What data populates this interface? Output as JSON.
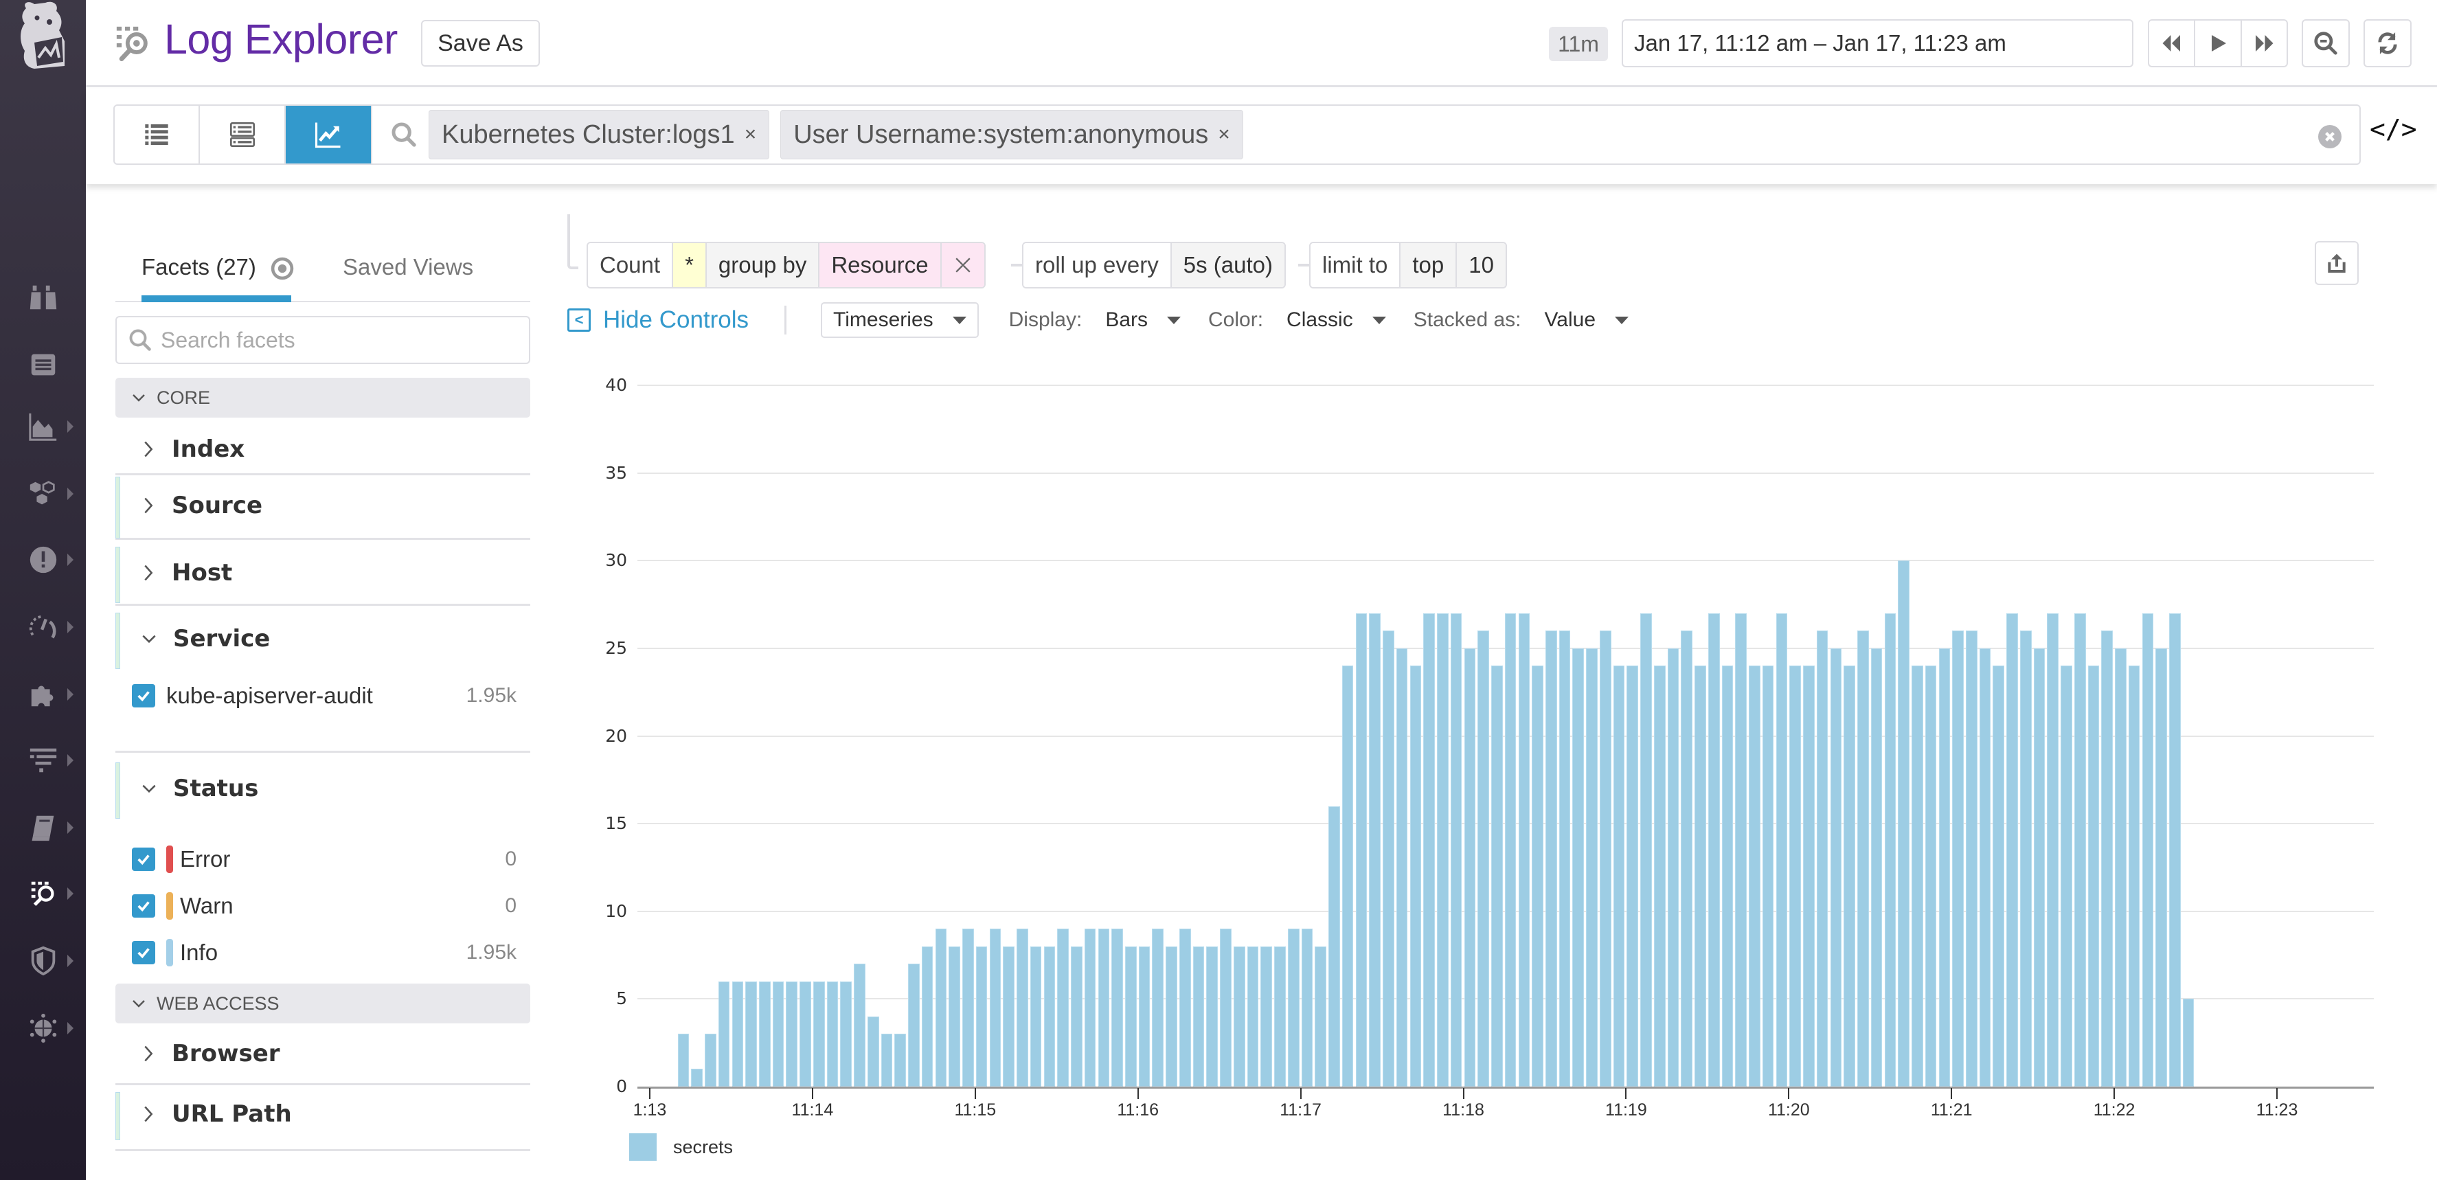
{
  "header": {
    "title": "Log Explorer",
    "save_as": "Save As",
    "span": "11m",
    "time_range": "Jan 17, 11:12 am – Jan 17, 11:23 am",
    "buttons": [
      "rewind-icon",
      "play-icon",
      "fast-forward-icon",
      "zoom-out-icon",
      "refresh-icon"
    ]
  },
  "nav": {
    "items": [
      "binoculars-icon",
      "list-icon",
      "dashboard-chart-icon",
      "infrastructure-icon",
      "monitors-alert-icon",
      "apm-gauge-icon",
      "integrations-puzzle-icon",
      "pipelines-filter-icon",
      "notebook-icon",
      "logs-icon",
      "security-shield-icon",
      "network-globe-icon"
    ]
  },
  "search": {
    "view_buttons": [
      "list-view",
      "patterns-view",
      "analytics-view"
    ],
    "active_view": "analytics-view",
    "pills": [
      {
        "label": "Kubernetes Cluster:logs1"
      },
      {
        "label": "User Username:system:anonymous"
      }
    ],
    "remove_label": "×",
    "code_label": "</>"
  },
  "facets": {
    "tab_active": "Facets (27)",
    "tab_inactive": "Saved Views",
    "search_placeholder": "Search facets",
    "groups": {
      "core": "CORE",
      "web_access": "WEB ACCESS"
    },
    "items": {
      "index": "Index",
      "source": "Source",
      "host": "Host",
      "service": "Service",
      "status": "Status",
      "browser": "Browser",
      "url_path": "URL Path"
    },
    "service_values": [
      {
        "label": "kube-apiserver-audit",
        "count": "1.95k"
      }
    ],
    "status_values": [
      {
        "label": "Error",
        "count": "0",
        "color": "#e04f4f"
      },
      {
        "label": "Warn",
        "count": "0",
        "color": "#ecb158"
      },
      {
        "label": "Info",
        "count": "1.95k",
        "color": "#a3cfe8"
      }
    ]
  },
  "query": {
    "count": "Count",
    "star": "*",
    "group_by": "group by",
    "resource": "Resource",
    "remove": "X",
    "roll_up": "roll up every",
    "interval": "5s (auto)",
    "limit_to": "limit to",
    "top": "top",
    "limit": "10"
  },
  "controls": {
    "hide_controls": "Hide Controls",
    "viz": "Timeseries",
    "display_label": "Display:",
    "display": "Bars",
    "color_label": "Color:",
    "color": "Classic",
    "stacked_label": "Stacked as:",
    "stacked": "Value"
  },
  "colors": {
    "brand": "#632ca6",
    "accent": "#3399cc",
    "bar": "#9dcde4"
  },
  "chart_data": {
    "type": "bar",
    "title": "",
    "xlabel": "",
    "ylabel": "",
    "ylim": [
      0,
      40
    ],
    "yticks": [
      0,
      5,
      10,
      15,
      20,
      25,
      30,
      35,
      40
    ],
    "xticks": [
      "1:13",
      "11:14",
      "11:15",
      "11:16",
      "11:17",
      "11:18",
      "11:19",
      "11:20",
      "11:21",
      "11:22",
      "11:23"
    ],
    "interval_seconds": 5,
    "start": "11:13:10",
    "grid": true,
    "legend_position": "bottom-left",
    "series": [
      {
        "name": "secrets",
        "color": "#9dcde4",
        "values": [
          3,
          1,
          3,
          6,
          6,
          6,
          6,
          6,
          6,
          6,
          6,
          6,
          6,
          7,
          4,
          3,
          3,
          7,
          8,
          9,
          8,
          9,
          8,
          9,
          8,
          9,
          8,
          8,
          9,
          8,
          9,
          9,
          9,
          8,
          8,
          9,
          8,
          9,
          8,
          8,
          9,
          8,
          8,
          8,
          8,
          9,
          9,
          8,
          16,
          24,
          27,
          27,
          26,
          25,
          24,
          27,
          27,
          27,
          25,
          26,
          24,
          27,
          27,
          24,
          26,
          26,
          25,
          25,
          26,
          24,
          24,
          27,
          24,
          25,
          26,
          24,
          27,
          24,
          27,
          24,
          24,
          27,
          24,
          24,
          26,
          25,
          24,
          26,
          25,
          27,
          30,
          24,
          24,
          25,
          26,
          26,
          25,
          24,
          27,
          26,
          25,
          27,
          24,
          27,
          24,
          26,
          25,
          24,
          27,
          25,
          27,
          5
        ]
      }
    ]
  }
}
